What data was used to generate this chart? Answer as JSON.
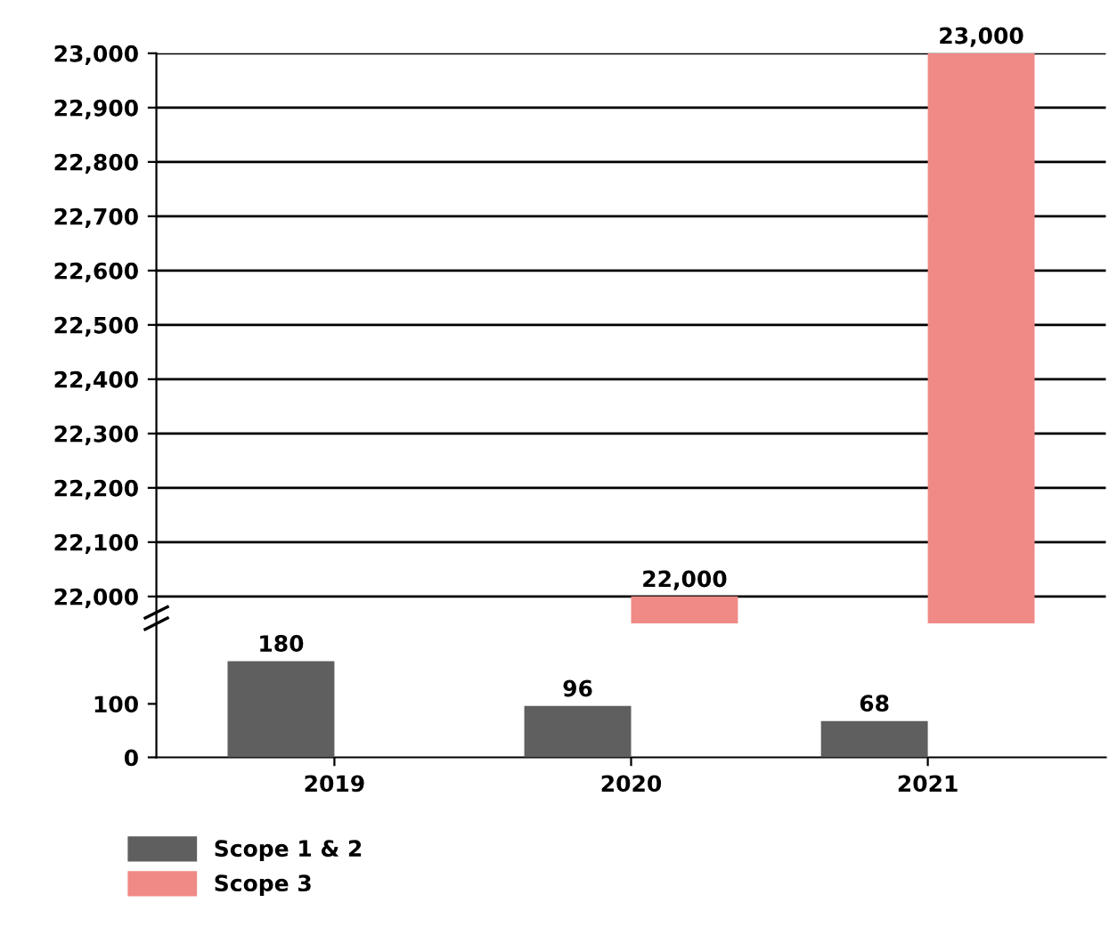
{
  "chart_data": [
    {
      "type": "bar",
      "categories": [
        "2019",
        "2020",
        "2021"
      ],
      "ylim": [
        21950,
        23000
      ],
      "yticks": [
        {
          "value": 22000,
          "label": "22,000"
        },
        {
          "value": 22100,
          "label": "22,100"
        },
        {
          "value": 22200,
          "label": "22,200"
        },
        {
          "value": 22300,
          "label": "22,300"
        },
        {
          "value": 22400,
          "label": "22,400"
        },
        {
          "value": 22500,
          "label": "22,500"
        },
        {
          "value": 22600,
          "label": "22,600"
        },
        {
          "value": 22700,
          "label": "22,700"
        },
        {
          "value": 22800,
          "label": "22,800"
        },
        {
          "value": 22900,
          "label": "22,900"
        },
        {
          "value": 23000,
          "label": "23,000"
        }
      ],
      "grid": "y",
      "tick_labels": "y",
      "series": [
        {
          "color": "#5f5f5f",
          "values": [
            null,
            null,
            null
          ]
        },
        {
          "color": "#ef8a87",
          "values": [
            null,
            22000,
            23000
          ],
          "value_labels": [
            null,
            "22,000",
            "23,000"
          ]
        }
      ]
    },
    {
      "type": "bar",
      "categories": [
        "2019",
        "2020",
        "2021"
      ],
      "ylim": [
        0,
        250
      ],
      "yticks": [
        0,
        100
      ],
      "grid": false,
      "legend": "bottom left",
      "series": [
        {
          "name": "Scope 1 & 2",
          "color": "#5f5f5f",
          "values": [
            180,
            96,
            68
          ],
          "value_labels": [
            "180",
            "96",
            "68"
          ]
        },
        {
          "name": "Scope 3",
          "color": "#ef8a87",
          "values": [
            null,
            null,
            null
          ]
        }
      ]
    }
  ]
}
